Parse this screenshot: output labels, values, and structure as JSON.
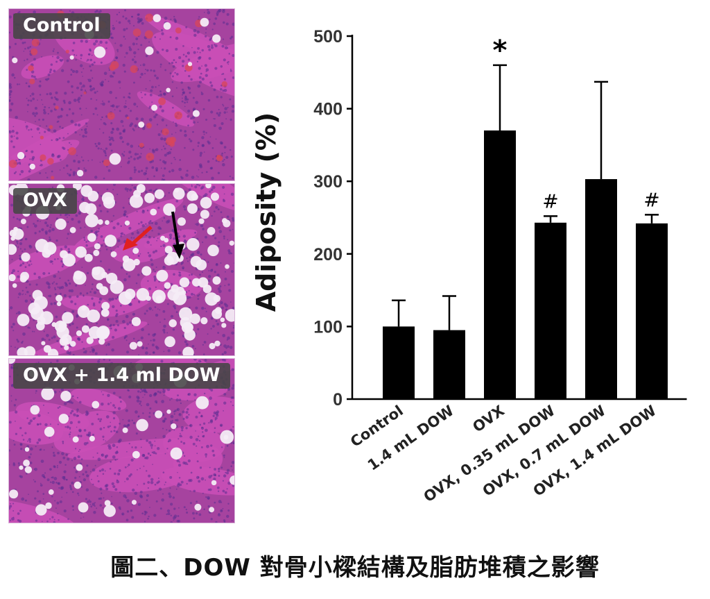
{
  "panels": [
    {
      "label": "Control"
    },
    {
      "label": "OVX"
    },
    {
      "label": "OVX + 1.4 ml DOW"
    }
  ],
  "colors": {
    "bone": "#c94fb6",
    "tissue": "#a6439f",
    "cell": "#5a2e8f",
    "fat": "#f4ecf6",
    "blood": "#d8465a",
    "bar": "#000000"
  },
  "chart_data": {
    "type": "bar",
    "categories": [
      "Control",
      "1.4 mL DOW",
      "OVX",
      "OVX, 0.35 mL DOW",
      "OVX, 0.7 mL DOW",
      "OVX, 1.4 mL DOW"
    ],
    "values": [
      100,
      95,
      370,
      243,
      303,
      242
    ],
    "error_upper": [
      136,
      142,
      460,
      252,
      437,
      254
    ],
    "significance": [
      "",
      "",
      "*",
      "#",
      "",
      "#"
    ],
    "ylabel": "Adiposity (%)",
    "ylim": [
      0,
      500
    ],
    "yticks": [
      0,
      100,
      200,
      300,
      400,
      500
    ],
    "grid": false
  },
  "caption": "圖二、DOW 對骨小樑結構及脂肪堆積之影響"
}
